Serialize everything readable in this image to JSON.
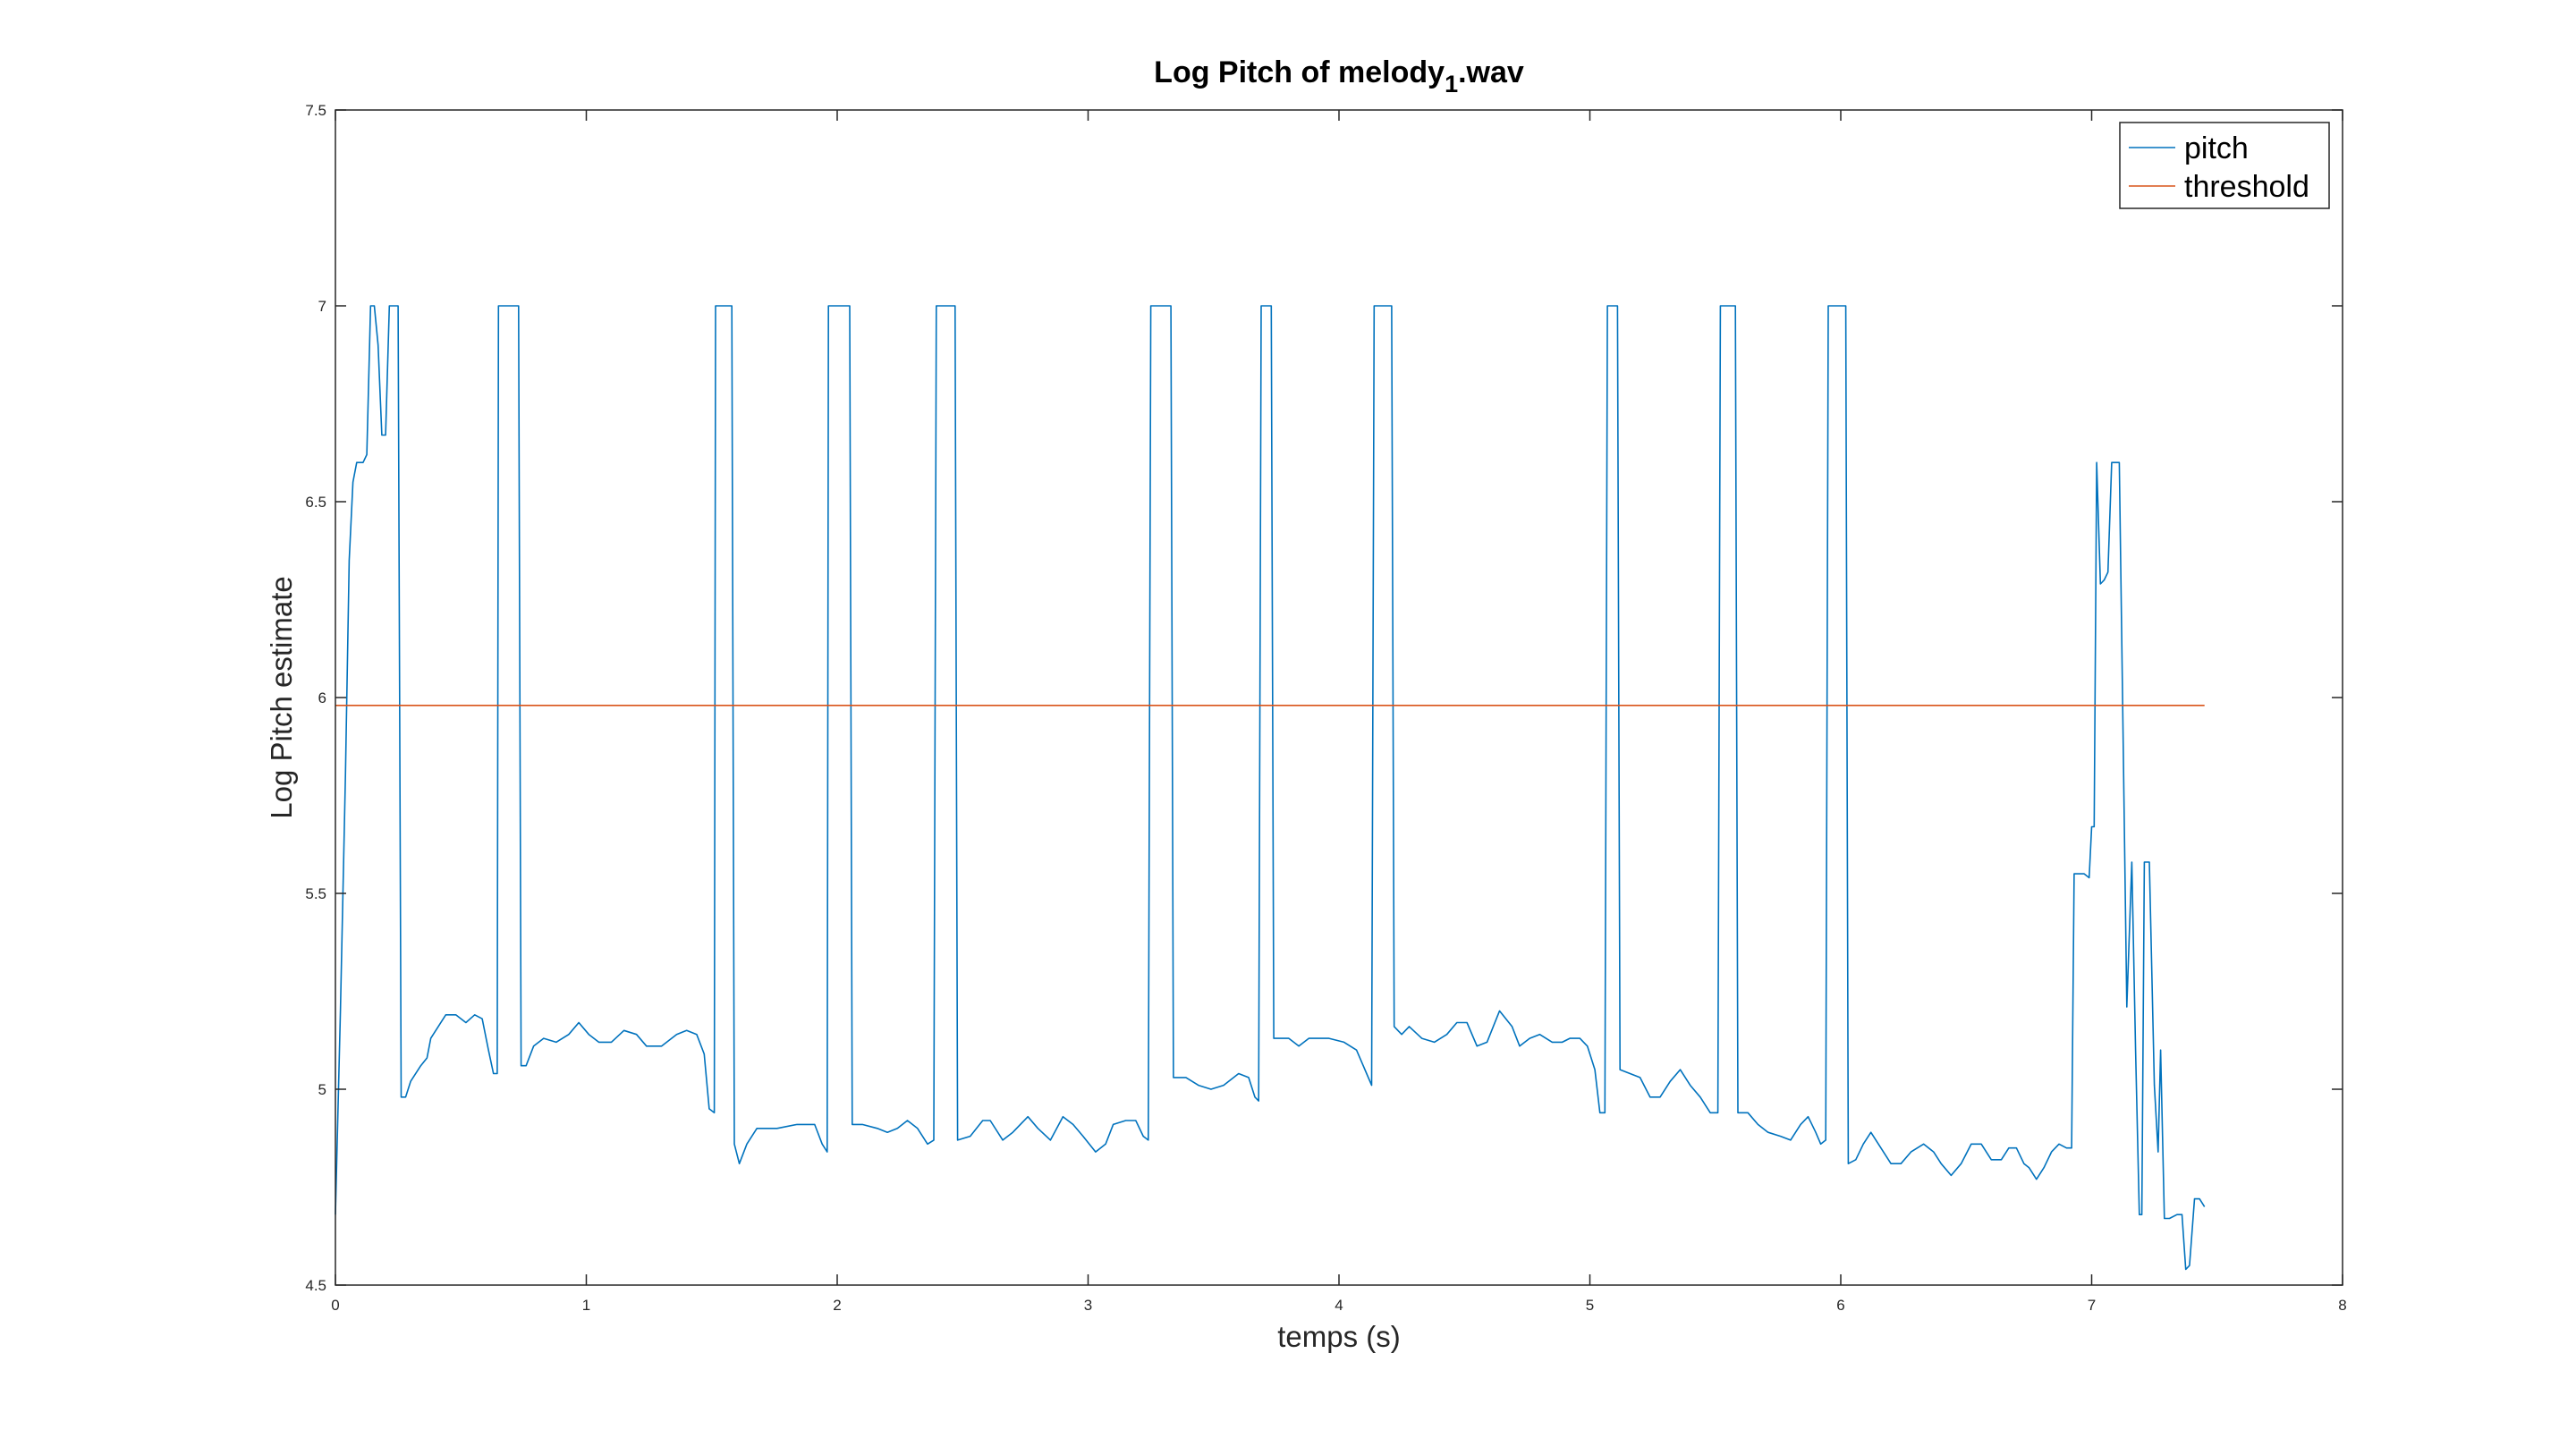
{
  "chart_data": {
    "type": "line",
    "title": "Log Pitch of melody",
    "title_subscript": "1",
    "title_suffix": ".wav",
    "xlabel": "temps (s)",
    "ylabel": "Log Pitch estimate",
    "xlim": [
      0,
      8
    ],
    "ylim": [
      4.5,
      7.5
    ],
    "xticks": [
      "0",
      "1",
      "2",
      "3",
      "4",
      "5",
      "6",
      "7",
      "8"
    ],
    "yticks": [
      "4.5",
      "5",
      "5.5",
      "6",
      "6.5",
      "7",
      "7.5"
    ],
    "grid": false,
    "legend": {
      "position": "top-right"
    },
    "series": [
      {
        "name": "pitch",
        "color": "#0072BD",
        "points": [
          [
            0.0,
            4.68
          ],
          [
            0.02,
            5.2
          ],
          [
            0.04,
            5.8
          ],
          [
            0.055,
            6.35
          ],
          [
            0.07,
            6.55
          ],
          [
            0.085,
            6.6
          ],
          [
            0.11,
            6.6
          ],
          [
            0.125,
            6.62
          ],
          [
            0.14,
            7.0
          ],
          [
            0.155,
            7.0
          ],
          [
            0.17,
            6.9
          ],
          [
            0.185,
            6.67
          ],
          [
            0.2,
            6.67
          ],
          [
            0.215,
            7.0
          ],
          [
            0.25,
            7.0
          ],
          [
            0.262,
            4.98
          ],
          [
            0.28,
            4.98
          ],
          [
            0.3,
            5.02
          ],
          [
            0.34,
            5.06
          ],
          [
            0.365,
            5.08
          ],
          [
            0.38,
            5.13
          ],
          [
            0.41,
            5.16
          ],
          [
            0.44,
            5.19
          ],
          [
            0.48,
            5.19
          ],
          [
            0.52,
            5.17
          ],
          [
            0.555,
            5.19
          ],
          [
            0.585,
            5.18
          ],
          [
            0.61,
            5.1
          ],
          [
            0.63,
            5.04
          ],
          [
            0.645,
            5.04
          ],
          [
            0.65,
            7.0
          ],
          [
            0.73,
            7.0
          ],
          [
            0.74,
            5.06
          ],
          [
            0.76,
            5.06
          ],
          [
            0.79,
            5.11
          ],
          [
            0.83,
            5.13
          ],
          [
            0.88,
            5.12
          ],
          [
            0.93,
            5.14
          ],
          [
            0.97,
            5.17
          ],
          [
            1.01,
            5.14
          ],
          [
            1.05,
            5.12
          ],
          [
            1.1,
            5.12
          ],
          [
            1.15,
            5.15
          ],
          [
            1.2,
            5.14
          ],
          [
            1.24,
            5.11
          ],
          [
            1.3,
            5.11
          ],
          [
            1.36,
            5.14
          ],
          [
            1.4,
            5.15
          ],
          [
            1.44,
            5.14
          ],
          [
            1.47,
            5.09
          ],
          [
            1.49,
            4.95
          ],
          [
            1.51,
            4.94
          ],
          [
            1.515,
            7.0
          ],
          [
            1.58,
            7.0
          ],
          [
            1.59,
            4.86
          ],
          [
            1.61,
            4.81
          ],
          [
            1.64,
            4.86
          ],
          [
            1.68,
            4.9
          ],
          [
            1.76,
            4.9
          ],
          [
            1.84,
            4.91
          ],
          [
            1.91,
            4.91
          ],
          [
            1.94,
            4.86
          ],
          [
            1.96,
            4.84
          ],
          [
            1.965,
            7.0
          ],
          [
            2.05,
            7.0
          ],
          [
            2.06,
            4.91
          ],
          [
            2.1,
            4.91
          ],
          [
            2.16,
            4.9
          ],
          [
            2.2,
            4.89
          ],
          [
            2.24,
            4.9
          ],
          [
            2.28,
            4.92
          ],
          [
            2.32,
            4.9
          ],
          [
            2.36,
            4.86
          ],
          [
            2.385,
            4.87
          ],
          [
            2.395,
            7.0
          ],
          [
            2.47,
            7.0
          ],
          [
            2.48,
            4.87
          ],
          [
            2.53,
            4.88
          ],
          [
            2.58,
            4.92
          ],
          [
            2.61,
            4.92
          ],
          [
            2.66,
            4.87
          ],
          [
            2.7,
            4.89
          ],
          [
            2.76,
            4.93
          ],
          [
            2.8,
            4.9
          ],
          [
            2.85,
            4.87
          ],
          [
            2.9,
            4.93
          ],
          [
            2.94,
            4.91
          ],
          [
            2.98,
            4.88
          ],
          [
            3.03,
            4.84
          ],
          [
            3.07,
            4.86
          ],
          [
            3.1,
            4.91
          ],
          [
            3.15,
            4.92
          ],
          [
            3.19,
            4.92
          ],
          [
            3.22,
            4.88
          ],
          [
            3.24,
            4.87
          ],
          [
            3.25,
            7.0
          ],
          [
            3.33,
            7.0
          ],
          [
            3.34,
            5.03
          ],
          [
            3.39,
            5.03
          ],
          [
            3.44,
            5.01
          ],
          [
            3.49,
            5.0
          ],
          [
            3.54,
            5.01
          ],
          [
            3.6,
            5.04
          ],
          [
            3.64,
            5.03
          ],
          [
            3.665,
            4.98
          ],
          [
            3.68,
            4.97
          ],
          [
            3.69,
            7.0
          ],
          [
            3.73,
            7.0
          ],
          [
            3.74,
            5.13
          ],
          [
            3.8,
            5.13
          ],
          [
            3.84,
            5.11
          ],
          [
            3.88,
            5.13
          ],
          [
            3.96,
            5.13
          ],
          [
            4.02,
            5.12
          ],
          [
            4.07,
            5.1
          ],
          [
            4.11,
            5.04
          ],
          [
            4.13,
            5.01
          ],
          [
            4.14,
            7.0
          ],
          [
            4.21,
            7.0
          ],
          [
            4.22,
            5.16
          ],
          [
            4.25,
            5.14
          ],
          [
            4.28,
            5.16
          ],
          [
            4.33,
            5.13
          ],
          [
            4.38,
            5.12
          ],
          [
            4.43,
            5.14
          ],
          [
            4.47,
            5.17
          ],
          [
            4.51,
            5.17
          ],
          [
            4.55,
            5.11
          ],
          [
            4.59,
            5.12
          ],
          [
            4.64,
            5.2
          ],
          [
            4.69,
            5.16
          ],
          [
            4.72,
            5.11
          ],
          [
            4.76,
            5.13
          ],
          [
            4.8,
            5.14
          ],
          [
            4.85,
            5.12
          ],
          [
            4.89,
            5.12
          ],
          [
            4.92,
            5.13
          ],
          [
            4.96,
            5.13
          ],
          [
            4.99,
            5.11
          ],
          [
            5.02,
            5.05
          ],
          [
            5.04,
            4.94
          ],
          [
            5.06,
            4.94
          ],
          [
            5.07,
            7.0
          ],
          [
            5.11,
            7.0
          ],
          [
            5.12,
            5.05
          ],
          [
            5.16,
            5.04
          ],
          [
            5.2,
            5.03
          ],
          [
            5.24,
            4.98
          ],
          [
            5.28,
            4.98
          ],
          [
            5.32,
            5.02
          ],
          [
            5.36,
            5.05
          ],
          [
            5.4,
            5.01
          ],
          [
            5.44,
            4.98
          ],
          [
            5.48,
            4.94
          ],
          [
            5.51,
            4.94
          ],
          [
            5.52,
            7.0
          ],
          [
            5.58,
            7.0
          ],
          [
            5.59,
            4.94
          ],
          [
            5.63,
            4.94
          ],
          [
            5.67,
            4.91
          ],
          [
            5.71,
            4.89
          ],
          [
            5.76,
            4.88
          ],
          [
            5.8,
            4.87
          ],
          [
            5.84,
            4.91
          ],
          [
            5.87,
            4.93
          ],
          [
            5.9,
            4.89
          ],
          [
            5.92,
            4.86
          ],
          [
            5.94,
            4.87
          ],
          [
            5.95,
            7.0
          ],
          [
            6.02,
            7.0
          ],
          [
            6.03,
            4.81
          ],
          [
            6.06,
            4.82
          ],
          [
            6.09,
            4.86
          ],
          [
            6.12,
            4.89
          ],
          [
            6.15,
            4.86
          ],
          [
            6.2,
            4.81
          ],
          [
            6.24,
            4.81
          ],
          [
            6.28,
            4.84
          ],
          [
            6.33,
            4.86
          ],
          [
            6.37,
            4.84
          ],
          [
            6.4,
            4.81
          ],
          [
            6.44,
            4.78
          ],
          [
            6.48,
            4.81
          ],
          [
            6.52,
            4.86
          ],
          [
            6.56,
            4.86
          ],
          [
            6.6,
            4.82
          ],
          [
            6.64,
            4.82
          ],
          [
            6.67,
            4.85
          ],
          [
            6.7,
            4.85
          ],
          [
            6.73,
            4.81
          ],
          [
            6.75,
            4.8
          ],
          [
            6.78,
            4.77
          ],
          [
            6.81,
            4.8
          ],
          [
            6.84,
            4.84
          ],
          [
            6.87,
            4.86
          ],
          [
            6.9,
            4.85
          ],
          [
            6.92,
            4.85
          ],
          [
            6.93,
            5.55
          ],
          [
            6.97,
            5.55
          ],
          [
            6.99,
            5.54
          ],
          [
            7.0,
            5.67
          ],
          [
            7.01,
            5.67
          ],
          [
            7.02,
            6.6
          ],
          [
            7.035,
            6.29
          ],
          [
            7.05,
            6.3
          ],
          [
            7.065,
            6.32
          ],
          [
            7.08,
            6.6
          ],
          [
            7.11,
            6.6
          ],
          [
            7.125,
            5.91
          ],
          [
            7.14,
            5.21
          ],
          [
            7.16,
            5.58
          ],
          [
            7.175,
            5.1
          ],
          [
            7.19,
            4.68
          ],
          [
            7.2,
            4.68
          ],
          [
            7.21,
            5.58
          ],
          [
            7.23,
            5.58
          ],
          [
            7.25,
            5.01
          ],
          [
            7.265,
            4.84
          ],
          [
            7.275,
            5.1
          ],
          [
            7.29,
            4.67
          ],
          [
            7.31,
            4.67
          ],
          [
            7.34,
            4.68
          ],
          [
            7.36,
            4.68
          ],
          [
            7.375,
            4.54
          ],
          [
            7.39,
            4.55
          ],
          [
            7.41,
            4.72
          ],
          [
            7.43,
            4.72
          ],
          [
            7.45,
            4.7
          ]
        ]
      },
      {
        "name": "threshold",
        "color": "#D95319",
        "points": [
          [
            0.0,
            5.98
          ],
          [
            7.45,
            5.98
          ]
        ]
      }
    ]
  }
}
